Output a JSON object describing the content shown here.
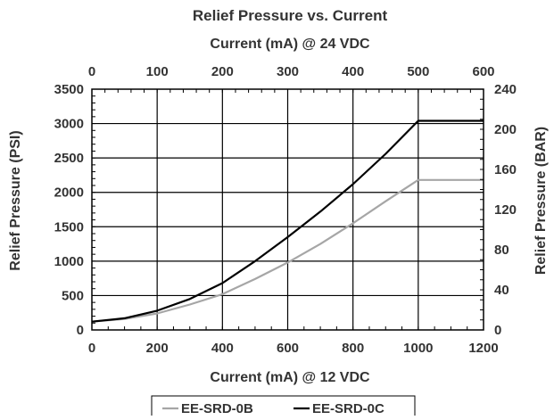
{
  "chart_data": {
    "type": "line",
    "title": "Relief Pressure vs. Current",
    "xlabel": "Current (mA) @ 12 VDC",
    "x2label": "Current (mA) @ 24 VDC",
    "ylabel": "Relief Pressure (PSI)",
    "y2label": "Relief Pressure (BAR)",
    "xlim": [
      0,
      1200
    ],
    "x2lim": [
      0,
      600
    ],
    "ylim": [
      0,
      3500
    ],
    "y2lim": [
      0,
      240
    ],
    "xticks": [
      "0",
      "200",
      "400",
      "600",
      "800",
      "1000",
      "1200"
    ],
    "x2ticks": [
      "0",
      "100",
      "200",
      "300",
      "400",
      "500",
      "600"
    ],
    "yticks": [
      "0",
      "500",
      "1000",
      "1500",
      "2000",
      "2500",
      "3000",
      "3500"
    ],
    "y2ticks": [
      "0",
      "40",
      "80",
      "120",
      "160",
      "200",
      "240"
    ],
    "grid": true,
    "legend_position": "bottom",
    "series": [
      {
        "name": "EE-SRD-0B",
        "color": "#a6a6a6",
        "x": [
          0,
          100,
          200,
          300,
          400,
          500,
          600,
          700,
          800,
          900,
          1000,
          1200
        ],
        "y": [
          120,
          160,
          240,
          370,
          520,
          740,
          980,
          1250,
          1550,
          1870,
          2180,
          2180
        ]
      },
      {
        "name": "EE-SRD-0C",
        "color": "#000000",
        "x": [
          0,
          100,
          200,
          300,
          400,
          500,
          600,
          700,
          800,
          900,
          1000,
          1200
        ],
        "y": [
          120,
          170,
          280,
          450,
          680,
          1000,
          1350,
          1720,
          2120,
          2560,
          3040,
          3040
        ]
      }
    ]
  }
}
